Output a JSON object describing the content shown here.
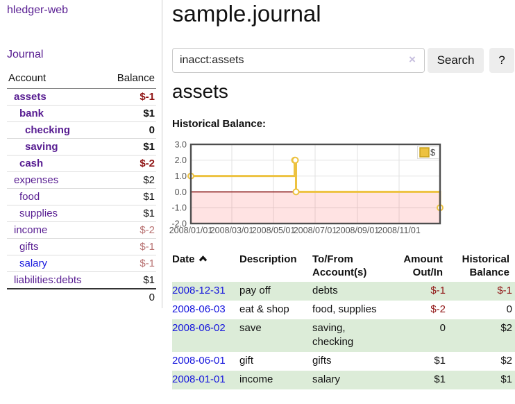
{
  "app": {
    "title": "hledger-web"
  },
  "sidebar": {
    "journal_link": "Journal",
    "accounts_table": {
      "headers": {
        "account": "Account",
        "balance": "Balance"
      },
      "rows": [
        {
          "label": "assets",
          "depth": 1,
          "in_account": true,
          "balance": "$-1"
        },
        {
          "label": "bank",
          "depth": 2,
          "in_account": true,
          "balance": "$1"
        },
        {
          "label": "checking",
          "depth": 3,
          "in_account": true,
          "balance": "0"
        },
        {
          "label": "saving",
          "depth": 3,
          "in_account": true,
          "balance": "$1"
        },
        {
          "label": "cash",
          "depth": 2,
          "in_account": true,
          "balance": "$-2"
        },
        {
          "label": "expenses",
          "depth": 1,
          "in_account": false,
          "balance": "$2"
        },
        {
          "label": "food",
          "depth": 2,
          "in_account": false,
          "balance": "$1"
        },
        {
          "label": "supplies",
          "depth": 2,
          "in_account": false,
          "balance": "$1"
        },
        {
          "label": "income",
          "depth": 1,
          "in_account": false,
          "balance": "$-2"
        },
        {
          "label": "gifts",
          "depth": 2,
          "in_account": false,
          "balance": "$-1"
        },
        {
          "label": "salary",
          "depth": 2,
          "in_account": false,
          "balance": "$-1",
          "link_state": "unvisited"
        },
        {
          "label": "liabilities:debts",
          "depth": 1,
          "in_account": false,
          "balance": "$1"
        }
      ],
      "total": "0"
    }
  },
  "main": {
    "title": "sample.journal",
    "search": {
      "value": "inacct:assets",
      "clear_icon": "×",
      "search_button": "Search",
      "help_button": "?"
    },
    "account_heading": "assets",
    "chart_label": "Historical Balance:",
    "register_table": {
      "columns": [
        {
          "label": "Date",
          "sort": "asc",
          "sortable": true
        },
        {
          "label": "Description"
        },
        {
          "label": "To/From Account(s)"
        },
        {
          "label": "Amount Out/In",
          "align": "right"
        },
        {
          "label": "Historical Balance",
          "align": "right"
        }
      ],
      "rows": [
        {
          "date": "2008-12-31",
          "description": "pay off",
          "accounts": "debts",
          "amount": "$-1",
          "balance": "$-1"
        },
        {
          "date": "2008-06-03",
          "description": "eat & shop",
          "accounts": "food, supplies",
          "amount": "$-2",
          "balance": "0"
        },
        {
          "date": "2008-06-02",
          "description": "save",
          "accounts": "saving, checking",
          "amount": "0",
          "balance": "$2"
        },
        {
          "date": "2008-06-01",
          "description": "gift",
          "accounts": "gifts",
          "amount": "$1",
          "balance": "$2"
        },
        {
          "date": "2008-01-01",
          "description": "income",
          "accounts": "salary",
          "amount": "$1",
          "balance": "$1"
        }
      ],
      "green_row_indices": [
        0,
        2,
        4
      ]
    }
  },
  "chart_data": {
    "type": "line",
    "style": "step",
    "title": "Historical Balance",
    "series": [
      {
        "name": "$",
        "points": [
          [
            "2008-01-01",
            1
          ],
          [
            "2008-06-01",
            2
          ],
          [
            "2008-06-02",
            2
          ],
          [
            "2008-06-03",
            0
          ],
          [
            "2008-12-31",
            -1
          ]
        ]
      }
    ],
    "xlim": [
      "2008-01-01",
      "2008-12-31"
    ],
    "ylim": [
      -2,
      3
    ],
    "x_tick_labels": [
      "2008/01/01",
      "2008/03/01",
      "2008/05/01",
      "2008/07/01",
      "2008/09/01",
      "2008/11/01"
    ],
    "x_tick_dates": [
      "2008-01-01",
      "2008-03-01",
      "2008-05-01",
      "2008-07-01",
      "2008-09-01",
      "2008-11-01"
    ],
    "y_ticks": [
      3.0,
      2.0,
      1.0,
      0.0,
      -1.0,
      -2.0
    ],
    "grid": true,
    "legend": {
      "label": "$",
      "position": "top-right"
    },
    "negative_region_shaded": true
  },
  "colors": {
    "accent_purple": "#571c91",
    "link_blue": "#1515dd",
    "negative_strong": "#8f1313",
    "negative_soft": "#b87272",
    "row_green": "#dcecd8",
    "chart_line_gold": "#edc240",
    "chart_negative_fill": "#fbdede",
    "chart_zero_line": "#8b1a1a",
    "chart_border": "#4d4d4d",
    "chart_grid": "#e0e0e0",
    "chart_tick_text": "#545454",
    "button_bg": "#ededed"
  }
}
